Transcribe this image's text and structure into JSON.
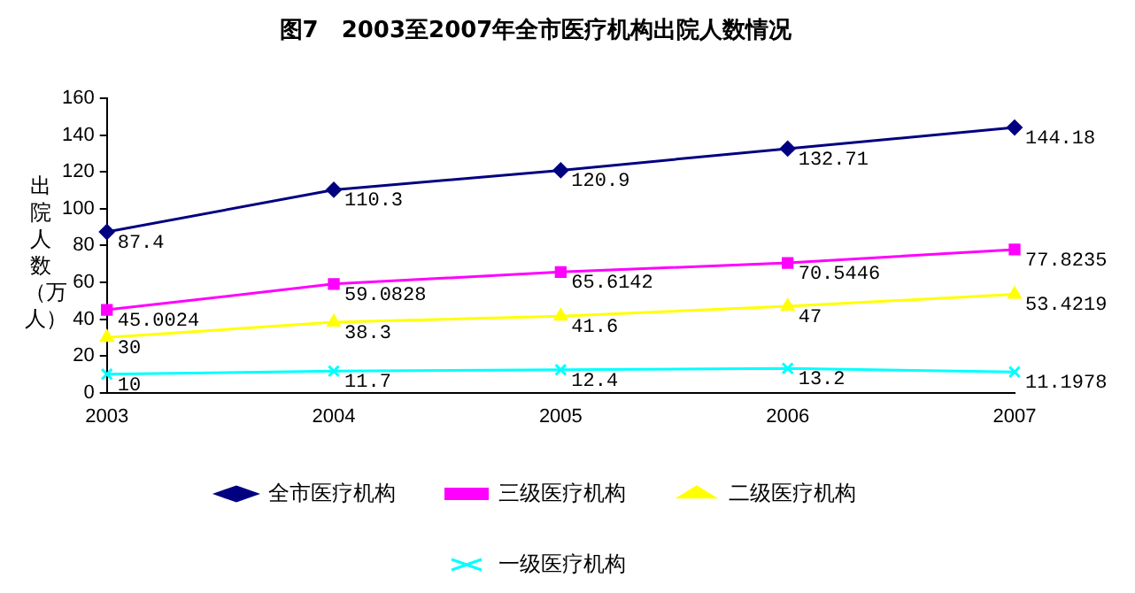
{
  "chart_data": {
    "type": "line",
    "title": "图7　2003至2007年全市医疗机构出院人数情况",
    "ylabel": "出院人数（万人）",
    "categories": [
      "2003",
      "2004",
      "2005",
      "2006",
      "2007"
    ],
    "series": [
      {
        "name": "全市医疗机构",
        "color": "#000080",
        "marker": "diamond",
        "values": [
          87.4,
          110.3,
          120.9,
          132.71,
          144.18
        ]
      },
      {
        "name": "三级医疗机构",
        "color": "#ff00ff",
        "marker": "square",
        "values": [
          45.0024,
          59.0828,
          65.6142,
          70.5446,
          77.8235
        ]
      },
      {
        "name": "二级医疗机构",
        "color": "#ffff00",
        "marker": "triangle",
        "values": [
          30,
          38.3,
          41.6,
          47,
          53.4219
        ]
      },
      {
        "name": "一级医疗机构",
        "color": "#00ffff",
        "marker": "cross",
        "values": [
          10,
          11.7,
          12.4,
          13.2,
          11.1978
        ]
      }
    ],
    "ylim": [
      0,
      160
    ],
    "yticks": [
      0,
      20,
      40,
      60,
      80,
      100,
      120,
      140,
      160
    ],
    "grid": false,
    "legend": "bottom",
    "data_labels": true
  }
}
